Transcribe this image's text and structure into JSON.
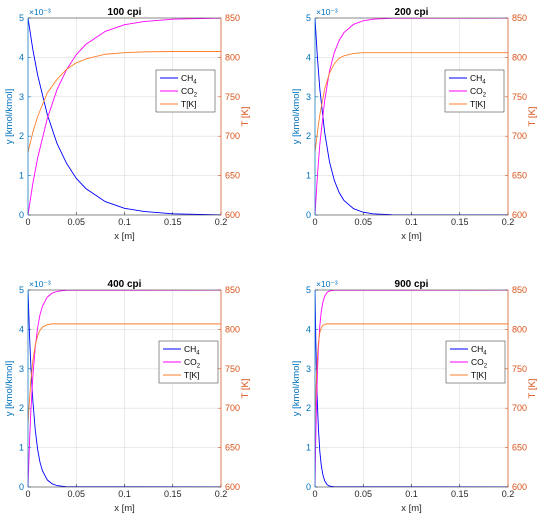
{
  "colors": {
    "left_axis": "#0072BD",
    "right_axis": "#D95319",
    "ch4": "#0000FF",
    "co2": "#FF00FF",
    "temp": "#FF7F2A",
    "grid": "#DDDDDD",
    "frame": "#262626"
  },
  "chart_data": [
    {
      "type": "line",
      "title": "100 cpi",
      "xlabel": "x [m]",
      "ylabel": "y [kmol/kmol]",
      "ylabel_right": "T [K]",
      "exponent_label": "×10⁻³",
      "xlim": [
        0,
        0.2
      ],
      "ylim": [
        0,
        5
      ],
      "ylim_right": [
        600,
        850
      ],
      "xticks": [
        "0",
        "0.05",
        "0.1",
        "0.15",
        "0.2"
      ],
      "yticks": [
        "0",
        "1",
        "2",
        "3",
        "4",
        "5"
      ],
      "yticks_right": [
        "600",
        "650",
        "700",
        "750",
        "800",
        "850"
      ],
      "grid": true,
      "legend_position": "center-right",
      "legend": [
        "CH",
        "CO",
        "T[K]"
      ],
      "legend_subscripts": [
        "4",
        "2",
        ""
      ],
      "series": [
        {
          "name": "CH4",
          "axis": "left",
          "x": [
            0,
            0.005,
            0.01,
            0.02,
            0.03,
            0.04,
            0.05,
            0.06,
            0.08,
            0.1,
            0.12,
            0.15,
            0.2
          ],
          "values": [
            5.0,
            4.2,
            3.55,
            2.55,
            1.82,
            1.31,
            0.93,
            0.67,
            0.34,
            0.17,
            0.09,
            0.03,
            0.0
          ]
        },
        {
          "name": "CO2",
          "axis": "left",
          "x": [
            0,
            0.005,
            0.01,
            0.02,
            0.03,
            0.04,
            0.05,
            0.06,
            0.08,
            0.1,
            0.12,
            0.15,
            0.2
          ],
          "values": [
            0.0,
            0.8,
            1.45,
            2.45,
            3.18,
            3.69,
            4.07,
            4.33,
            4.66,
            4.83,
            4.91,
            4.97,
            5.0
          ]
        },
        {
          "name": "T[K]",
          "axis": "right",
          "x": [
            0,
            0.005,
            0.01,
            0.02,
            0.03,
            0.04,
            0.05,
            0.06,
            0.08,
            0.1,
            0.12,
            0.15,
            0.2
          ],
          "values": [
            680,
            705,
            725,
            755,
            772,
            785,
            793,
            798,
            804,
            806,
            807,
            807.5,
            807.5
          ]
        }
      ]
    },
    {
      "type": "line",
      "title": "200 cpi",
      "xlabel": "x [m]",
      "ylabel": "y [kmol/kmol]",
      "ylabel_right": "T [K]",
      "exponent_label": "×10⁻³",
      "xlim": [
        0,
        0.2
      ],
      "ylim": [
        0,
        5
      ],
      "ylim_right": [
        600,
        850
      ],
      "xticks": [
        "0",
        "0.05",
        "0.1",
        "0.15",
        "0.2"
      ],
      "yticks": [
        "0",
        "1",
        "2",
        "3",
        "4",
        "5"
      ],
      "yticks_right": [
        "600",
        "650",
        "700",
        "750",
        "800",
        "850"
      ],
      "grid": true,
      "legend_position": "center-right",
      "legend": [
        "CH",
        "CO",
        "T[K]"
      ],
      "legend_subscripts": [
        "4",
        "2",
        ""
      ],
      "series": [
        {
          "name": "CH4",
          "axis": "left",
          "x": [
            0,
            0.0025,
            0.005,
            0.01,
            0.015,
            0.02,
            0.025,
            0.03,
            0.04,
            0.05,
            0.06,
            0.08,
            0.2
          ],
          "values": [
            5.0,
            4.0,
            3.2,
            2.1,
            1.35,
            0.88,
            0.57,
            0.37,
            0.16,
            0.07,
            0.03,
            0.005,
            0.0
          ]
        },
        {
          "name": "CO2",
          "axis": "left",
          "x": [
            0,
            0.0025,
            0.005,
            0.01,
            0.015,
            0.02,
            0.025,
            0.03,
            0.04,
            0.05,
            0.06,
            0.08,
            0.2
          ],
          "values": [
            0.0,
            1.0,
            1.8,
            2.9,
            3.65,
            4.12,
            4.43,
            4.63,
            4.84,
            4.93,
            4.97,
            4.995,
            5.0
          ]
        },
        {
          "name": "T[K]",
          "axis": "right",
          "x": [
            0,
            0.0025,
            0.005,
            0.01,
            0.015,
            0.02,
            0.025,
            0.03,
            0.04,
            0.05,
            0.06,
            0.08,
            0.2
          ],
          "values": [
            680,
            705,
            727,
            760,
            780,
            792,
            799,
            802,
            805,
            806,
            806,
            806,
            806
          ]
        }
      ]
    },
    {
      "type": "line",
      "title": "400 cpi",
      "xlabel": "x [m]",
      "ylabel": "y [kmol/kmol]",
      "ylabel_right": "T [K]",
      "exponent_label": "×10⁻³",
      "xlim": [
        0,
        0.2
      ],
      "ylim": [
        0,
        5
      ],
      "ylim_right": [
        600,
        850
      ],
      "xticks": [
        "0",
        "0.05",
        "0.1",
        "0.15",
        "0.2"
      ],
      "yticks": [
        "0",
        "1",
        "2",
        "3",
        "4",
        "5"
      ],
      "yticks_right": [
        "600",
        "650",
        "700",
        "750",
        "800",
        "850"
      ],
      "grid": true,
      "legend_position": "center-right",
      "legend": [
        "CH",
        "CO",
        "T[K]"
      ],
      "legend_subscripts": [
        "4",
        "2",
        ""
      ],
      "series": [
        {
          "name": "CH4",
          "axis": "left",
          "x": [
            0,
            0.0015,
            0.003,
            0.005,
            0.0075,
            0.01,
            0.0125,
            0.015,
            0.02,
            0.025,
            0.03,
            0.04,
            0.2
          ],
          "values": [
            5.0,
            3.9,
            3.05,
            2.2,
            1.45,
            0.95,
            0.62,
            0.41,
            0.18,
            0.08,
            0.035,
            0.005,
            0.0
          ]
        },
        {
          "name": "CO2",
          "axis": "left",
          "x": [
            0,
            0.0015,
            0.003,
            0.005,
            0.0075,
            0.01,
            0.0125,
            0.015,
            0.02,
            0.025,
            0.03,
            0.04,
            0.2
          ],
          "values": [
            0.0,
            1.1,
            1.95,
            2.8,
            3.55,
            4.05,
            4.38,
            4.59,
            4.82,
            4.92,
            4.965,
            4.995,
            5.0
          ]
        },
        {
          "name": "T[K]",
          "axis": "right",
          "x": [
            0,
            0.0015,
            0.003,
            0.005,
            0.0075,
            0.01,
            0.0125,
            0.015,
            0.02,
            0.025,
            0.03,
            0.04,
            0.2
          ],
          "values": [
            680,
            710,
            735,
            760,
            780,
            792,
            799,
            803,
            806,
            807,
            807,
            807,
            807
          ]
        }
      ]
    },
    {
      "type": "line",
      "title": "900 cpi",
      "xlabel": "x [m]",
      "ylabel": "y [kmol/kmol]",
      "ylabel_right": "T [K]",
      "exponent_label": "×10⁻³",
      "xlim": [
        0,
        0.2
      ],
      "ylim": [
        0,
        5
      ],
      "ylim_right": [
        600,
        850
      ],
      "xticks": [
        "0",
        "0.05",
        "0.1",
        "0.15",
        "0.2"
      ],
      "yticks": [
        "0",
        "1",
        "2",
        "3",
        "4",
        "5"
      ],
      "yticks_right": [
        "600",
        "650",
        "700",
        "750",
        "800",
        "850"
      ],
      "grid": true,
      "legend_position": "center-right",
      "legend": [
        "CH",
        "CO",
        "T[K]"
      ],
      "legend_subscripts": [
        "4",
        "2",
        ""
      ],
      "series": [
        {
          "name": "CH4",
          "axis": "left",
          "x": [
            0,
            0.0007,
            0.0015,
            0.0025,
            0.0035,
            0.005,
            0.0065,
            0.008,
            0.01,
            0.0125,
            0.015,
            0.02,
            0.2
          ],
          "values": [
            5.0,
            3.9,
            2.95,
            2.1,
            1.5,
            0.9,
            0.55,
            0.33,
            0.16,
            0.06,
            0.025,
            0.004,
            0.0
          ]
        },
        {
          "name": "CO2",
          "axis": "left",
          "x": [
            0,
            0.0007,
            0.0015,
            0.0025,
            0.0035,
            0.005,
            0.0065,
            0.008,
            0.01,
            0.0125,
            0.015,
            0.02,
            0.2
          ],
          "values": [
            0.0,
            1.1,
            2.05,
            2.9,
            3.5,
            4.1,
            4.45,
            4.67,
            4.84,
            4.94,
            4.975,
            4.996,
            5.0
          ]
        },
        {
          "name": "T[K]",
          "axis": "right",
          "x": [
            0,
            0.0007,
            0.0015,
            0.0025,
            0.0035,
            0.005,
            0.0065,
            0.008,
            0.01,
            0.0125,
            0.015,
            0.02,
            0.2
          ],
          "values": [
            680,
            712,
            740,
            765,
            782,
            796,
            802,
            805,
            806.5,
            807,
            807,
            807,
            807
          ]
        }
      ]
    }
  ]
}
